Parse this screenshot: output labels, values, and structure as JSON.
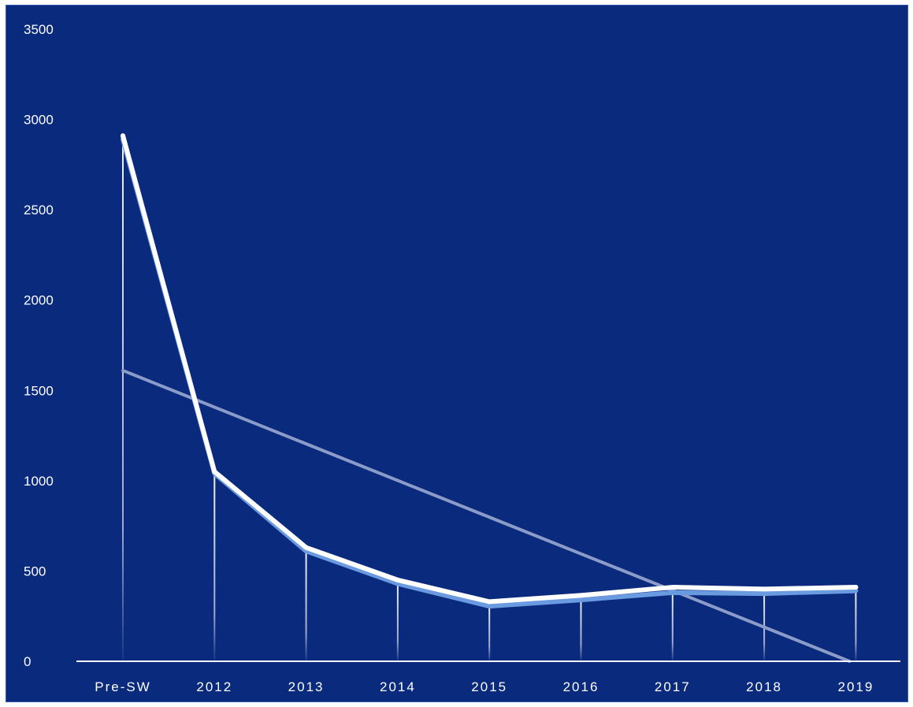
{
  "chart_data": {
    "type": "line",
    "title": "",
    "xlabel": "",
    "ylabel": "",
    "categories": [
      "Pre-SW",
      "2012",
      "2013",
      "2014",
      "2015",
      "2016",
      "2017",
      "2018",
      "2019"
    ],
    "ylim": [
      0,
      3500
    ],
    "y_ticks": [
      "0",
      "500",
      "1000",
      "1500",
      "2000",
      "2500",
      "3000",
      "3500"
    ],
    "series": [
      {
        "values": [
          2910,
          1050,
          630,
          450,
          330,
          365,
          410,
          400,
          410
        ],
        "style": "thick white line",
        "color": "#ffffff"
      },
      {
        "values": [
          2890,
          1040,
          610,
          430,
          305,
          340,
          380,
          375,
          390
        ],
        "style": "light blue shadow line",
        "color": "#6a9ae0"
      },
      {
        "values": [
          1610,
          1407,
          1204,
          1001,
          798,
          595,
          392,
          189,
          -14
        ],
        "style": "linear trendline",
        "color": "#8c9cc8"
      }
    ],
    "drop_lines": true,
    "grid": false,
    "legend": "none",
    "background": "#0a2a7e"
  }
}
